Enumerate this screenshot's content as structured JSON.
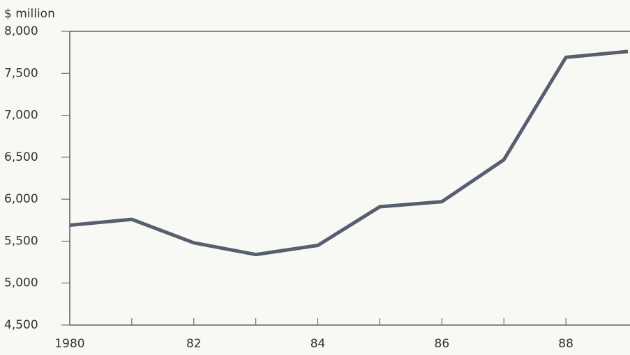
{
  "chart_data": {
    "type": "line",
    "y_axis_label": "$ million",
    "x": [
      1980,
      1981,
      1982,
      1983,
      1984,
      1985,
      1986,
      1987,
      1988,
      1989
    ],
    "series": [
      {
        "name": null,
        "color": "#565e70",
        "values": [
          5690,
          5760,
          5480,
          5340,
          5450,
          5910,
          5970,
          6470,
          7690,
          7760
        ]
      }
    ],
    "xlim": [
      1980,
      1989
    ],
    "xticks": [
      {
        "value": 1980,
        "label": "1980"
      },
      {
        "value": 1982,
        "label": "82"
      },
      {
        "value": 1984,
        "label": "84"
      },
      {
        "value": 1986,
        "label": "86"
      },
      {
        "value": 1988,
        "label": "88"
      }
    ],
    "xminorticks": [
      1981,
      1983,
      1985,
      1987
    ],
    "ylim": [
      4500,
      8000
    ],
    "yticks": [
      {
        "value": 4500,
        "label": "4,500"
      },
      {
        "value": 5000,
        "label": "5,000"
      },
      {
        "value": 5500,
        "label": "5,500"
      },
      {
        "value": 6000,
        "label": "6,000"
      },
      {
        "value": 6500,
        "label": "6,500"
      },
      {
        "value": 7000,
        "label": "7,000"
      },
      {
        "value": 7500,
        "label": "7,500"
      },
      {
        "value": 8000,
        "label": "8,000"
      }
    ],
    "grid": false
  }
}
